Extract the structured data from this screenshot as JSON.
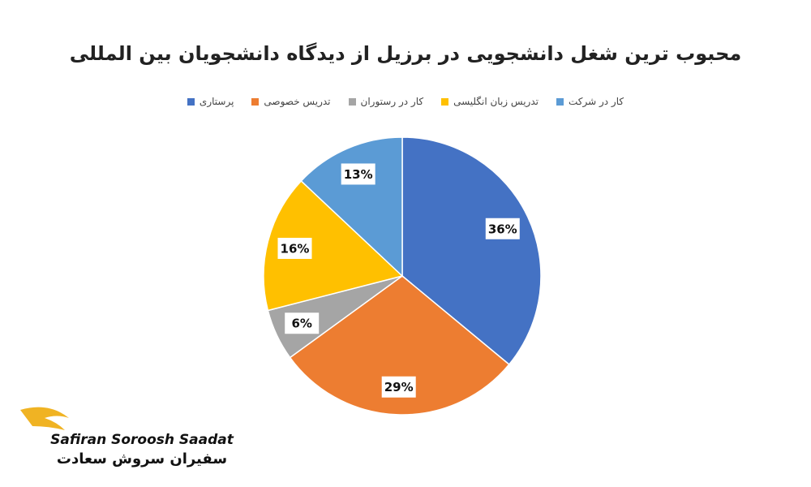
{
  "chart_data": {
    "type": "pie",
    "title": "محبوب ترین شغل دانشجویی در برزیل از دیدگاه دانشجویان بین المللی",
    "categories": [
      "پرستاری",
      "تدریس خصوصی",
      "کار در رستوران",
      "تدریس زبان انگلیسی",
      "کار در شرکت"
    ],
    "values": [
      36,
      29,
      6,
      16,
      13
    ],
    "value_labels": [
      "36%",
      "29%",
      "6%",
      "16%",
      "13%"
    ],
    "colors": [
      "#4472c4",
      "#ed7d31",
      "#a5a5a5",
      "#ffc000",
      "#5b9bd5"
    ],
    "legend": "top"
  },
  "logo": {
    "name": "Safiran Soroosh Saadat",
    "name_fa": "سفیران سروش سعادت"
  }
}
